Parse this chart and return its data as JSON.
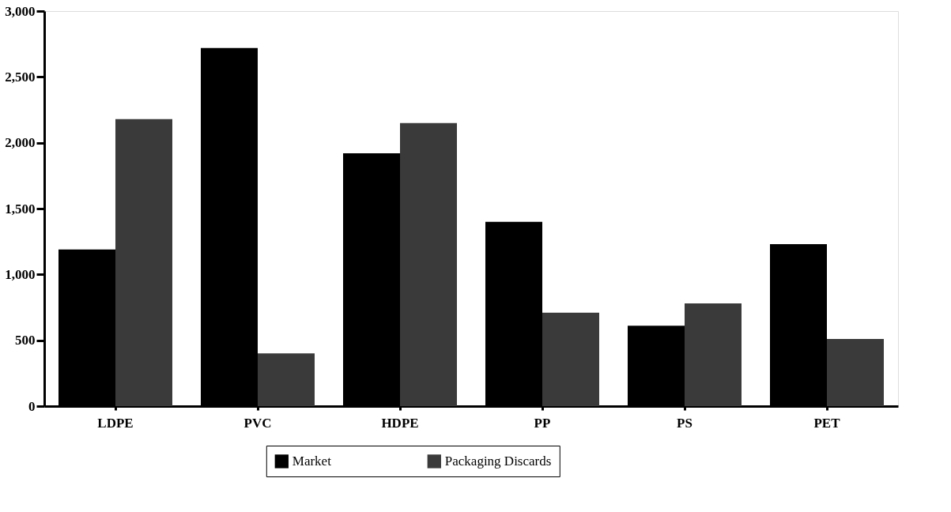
{
  "chart_data": {
    "type": "bar",
    "categories": [
      "LDPE",
      "PVC",
      "HDPE",
      "PP",
      "PS",
      "PET"
    ],
    "series": [
      {
        "name": "Market",
        "color": "#000000",
        "values": [
          1190,
          2720,
          1920,
          1400,
          610,
          1230
        ]
      },
      {
        "name": "Packaging Discards",
        "color": "#3a3a3a",
        "values": [
          2180,
          400,
          2150,
          710,
          780,
          510
        ]
      }
    ],
    "ylim": [
      0,
      3000
    ],
    "yticks": [
      0,
      500,
      {
        "value": 1000,
        "label": "1,000"
      },
      {
        "value": 1500,
        "label": "1,500"
      },
      {
        "value": 2000,
        "label": "2,000"
      },
      {
        "value": 2500,
        "label": "2,500"
      },
      {
        "value": 3000,
        "label": "3,000"
      }
    ],
    "grid": false,
    "legend": "bottom"
  }
}
